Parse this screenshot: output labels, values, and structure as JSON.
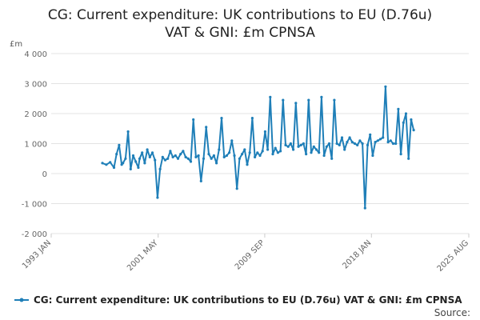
{
  "chart_data": {
    "type": "line",
    "title_lines": [
      "CG: Current expenditure: UK contributions to EU (D.76u)",
      "VAT & GNI: £m CPNSA"
    ],
    "ylabel": "£m",
    "ylim": [
      -2000,
      4000
    ],
    "y_ticks": [
      {
        "value": 4000,
        "label": "4 000"
      },
      {
        "value": 3000,
        "label": "3 000"
      },
      {
        "value": 2000,
        "label": "2 000"
      },
      {
        "value": 1000,
        "label": "1 000"
      },
      {
        "value": 0,
        "label": "0"
      },
      {
        "value": -1000,
        "label": "-1 000"
      },
      {
        "value": -2000,
        "label": "-2 000"
      }
    ],
    "xlim": [
      1993.0,
      2025.6
    ],
    "x_ticks": [
      {
        "value": 1993.0,
        "label": "1993 JAN"
      },
      {
        "value": 2001.35,
        "label": "2001 MAY"
      },
      {
        "value": 2009.67,
        "label": "2009 SEP"
      },
      {
        "value": 2018.0,
        "label": "2018 JAN"
      },
      {
        "value": 2025.6,
        "label": "2025 AUG"
      }
    ],
    "grid": "horizontal",
    "legend_position": "bottom",
    "series": [
      {
        "name": "CG: Current expenditure: UK contributions to EU (D.76u) VAT & GNI: £m CPNSA",
        "color": "#1f7fb8",
        "x": [
          1997.0,
          1997.3,
          1997.6,
          1997.9,
          1998.1,
          1998.3,
          1998.5,
          1998.6,
          1998.8,
          1999.0,
          1999.2,
          1999.4,
          1999.6,
          1999.8,
          1999.9,
          2000.1,
          2000.3,
          2000.5,
          2000.7,
          2000.9,
          2001.1,
          2001.3,
          2001.5,
          2001.7,
          2001.9,
          2002.1,
          2002.3,
          2002.5,
          2002.7,
          2002.9,
          2003.1,
          2003.3,
          2003.5,
          2003.7,
          2003.9,
          2004.1,
          2004.3,
          2004.5,
          2004.7,
          2004.9,
          2005.1,
          2005.3,
          2005.5,
          2005.7,
          2005.9,
          2006.1,
          2006.3,
          2006.5,
          2006.7,
          2006.9,
          2007.1,
          2007.3,
          2007.5,
          2007.7,
          2007.9,
          2008.1,
          2008.3,
          2008.5,
          2008.7,
          2008.9,
          2009.1,
          2009.3,
          2009.5,
          2009.7,
          2009.9,
          2010.1,
          2010.3,
          2010.5,
          2010.7,
          2010.9,
          2011.1,
          2011.3,
          2011.5,
          2011.7,
          2011.9,
          2012.1,
          2012.3,
          2012.5,
          2012.7,
          2012.9,
          2013.1,
          2013.3,
          2013.5,
          2013.7,
          2013.9,
          2014.1,
          2014.3,
          2014.5,
          2014.7,
          2014.9,
          2015.1,
          2015.3,
          2015.5,
          2015.7,
          2015.9,
          2016.1,
          2016.3,
          2016.5,
          2016.7,
          2016.9,
          2017.1,
          2017.3,
          2017.5,
          2017.7,
          2017.9,
          2018.1,
          2018.3,
          2018.5,
          2018.7,
          2018.9,
          2019.1,
          2019.3,
          2019.5,
          2019.7,
          2019.9,
          2020.1,
          2020.3,
          2020.5,
          2020.7,
          2020.9,
          2021.1,
          2021.3
        ],
        "values": [
          350,
          300,
          380,
          200,
          650,
          950,
          300,
          350,
          500,
          1400,
          150,
          600,
          400,
          200,
          500,
          700,
          350,
          800,
          550,
          700,
          450,
          -800,
          150,
          550,
          450,
          500,
          750,
          550,
          600,
          500,
          650,
          750,
          550,
          500,
          400,
          1800,
          550,
          600,
          -250,
          500,
          1550,
          650,
          500,
          600,
          350,
          800,
          1850,
          550,
          600,
          700,
          1100,
          600,
          -500,
          500,
          650,
          800,
          300,
          700,
          1850,
          550,
          700,
          600,
          750,
          1400,
          800,
          2550,
          650,
          850,
          700,
          750,
          2450,
          950,
          900,
          1000,
          800,
          2350,
          900,
          950,
          1000,
          650,
          2450,
          700,
          900,
          800,
          700,
          2550,
          600,
          900,
          1000,
          500,
          2450,
          1000,
          950,
          1200,
          800,
          1050,
          1200,
          1050,
          1000,
          950,
          1100,
          1000,
          -1150,
          950,
          1300,
          600,
          1050,
          1100,
          1150,
          1200,
          2900,
          1050,
          1100,
          1000,
          1000,
          2150,
          650,
          1700,
          2000,
          500,
          1800,
          1450
        ]
      }
    ]
  },
  "legend": {
    "label": "CG: Current expenditure: UK contributions to EU (D.76u) VAT & GNI: £m CPNSA"
  },
  "source": {
    "label": "Source:"
  }
}
